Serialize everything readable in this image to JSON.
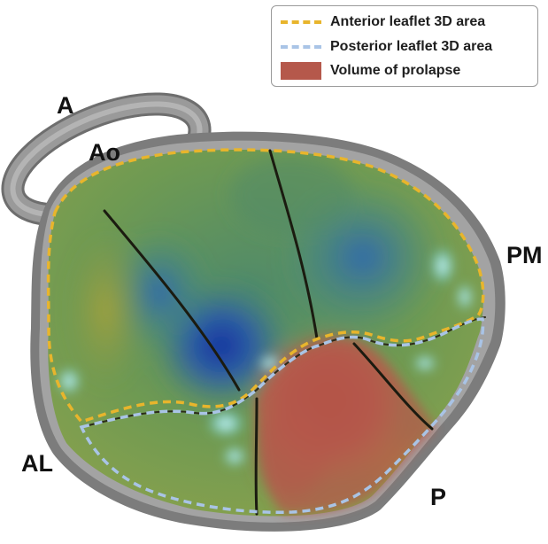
{
  "legend": {
    "items": [
      {
        "label": "Anterior leaflet 3D area",
        "style": "dashed-line",
        "color": "#e8b52c"
      },
      {
        "label": "Posterior leaflet 3D area",
        "style": "dashed-line",
        "color": "#a9c4e6"
      },
      {
        "label": "Volume of prolapse",
        "style": "filled-box",
        "color": "#b5584b"
      }
    ]
  },
  "labels": {
    "a": "A",
    "ao": "Ao",
    "pm": "PM",
    "al": "AL",
    "p": "P"
  },
  "colors": {
    "ring": "#8c8c8c",
    "ring_shadow": "#6e6e6e",
    "leaflet_green": "#6f9a52",
    "leaflet_blue": "#1c3fa8",
    "prolapse": "#b5584b",
    "highlight": "#d9fbff",
    "seam": "#1b1b10"
  }
}
